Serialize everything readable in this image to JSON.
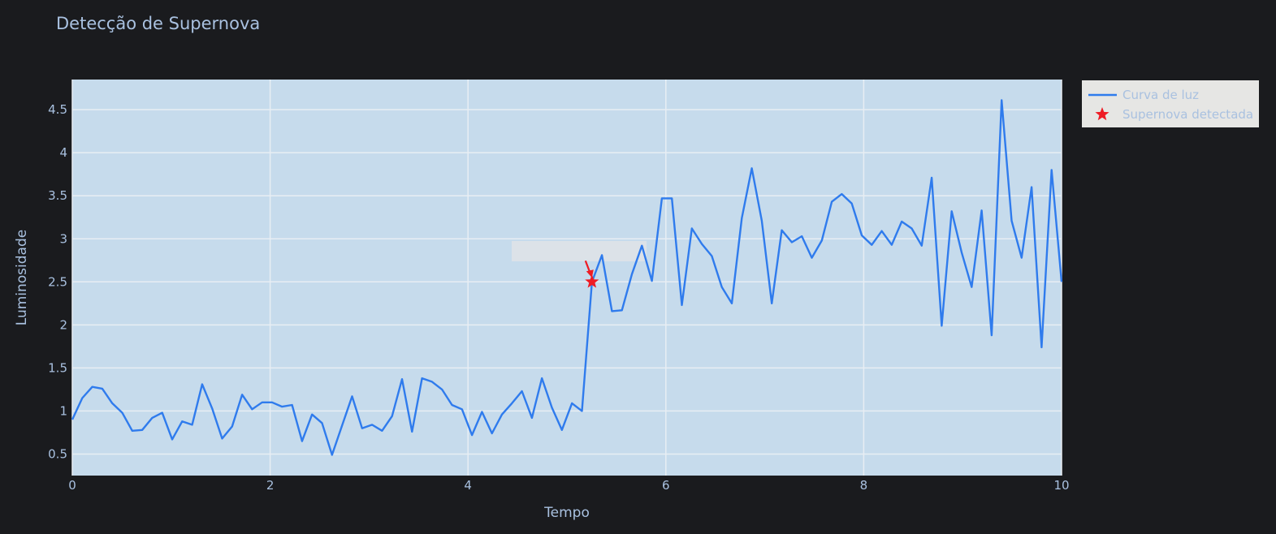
{
  "colors": {
    "background": "#1a1b1e",
    "plot_background": "#c6dbec",
    "grid": "#e8eef4",
    "text": "#a9c1e0",
    "line": "#2f7bed",
    "marker": "#ee1c25",
    "legend_background": "#e6e6e4",
    "annotation_box": "#dfe3e7"
  },
  "chart_data": {
    "type": "line",
    "title": "Detecção de Supernova",
    "xlabel": "Tempo",
    "ylabel": "Luminosidade",
    "xlim": [
      0,
      10
    ],
    "ylim": [
      0.25,
      4.85
    ],
    "xticks": [
      0,
      2,
      4,
      6,
      8,
      10
    ],
    "yticks": [
      0.5,
      1,
      1.5,
      2,
      2.5,
      3,
      3.5,
      4,
      4.5
    ],
    "grid": true,
    "legend_position": "top-right outside",
    "series": [
      {
        "name": "Curva de luz",
        "x": [
          0,
          0.101,
          0.202,
          0.303,
          0.404,
          0.505,
          0.606,
          0.707,
          0.808,
          0.909,
          1.01,
          1.111,
          1.212,
          1.313,
          1.414,
          1.515,
          1.616,
          1.717,
          1.818,
          1.919,
          2.02,
          2.121,
          2.222,
          2.323,
          2.424,
          2.525,
          2.626,
          2.727,
          2.828,
          2.929,
          3.03,
          3.131,
          3.232,
          3.333,
          3.434,
          3.535,
          3.636,
          3.737,
          3.838,
          3.939,
          4.04,
          4.141,
          4.242,
          4.343,
          4.444,
          4.545,
          4.646,
          4.747,
          4.848,
          4.949,
          5.051,
          5.152,
          5.253,
          5.354,
          5.455,
          5.556,
          5.657,
          5.758,
          5.859,
          5.96,
          6.061,
          6.162,
          6.263,
          6.364,
          6.465,
          6.566,
          6.667,
          6.768,
          6.869,
          6.97,
          7.071,
          7.172,
          7.273,
          7.374,
          7.475,
          7.576,
          7.677,
          7.778,
          7.879,
          7.98,
          8.081,
          8.182,
          8.283,
          8.384,
          8.485,
          8.586,
          8.687,
          8.788,
          8.889,
          8.99,
          9.091,
          9.192,
          9.293,
          9.394,
          9.495,
          9.596,
          9.697,
          9.798,
          9.899,
          10
        ],
        "y": [
          0.9,
          1.15,
          1.28,
          1.26,
          1.09,
          0.98,
          0.77,
          0.78,
          0.92,
          0.98,
          0.67,
          0.88,
          0.84,
          1.31,
          1.03,
          0.68,
          0.82,
          1.19,
          1.02,
          1.1,
          1.1,
          1.05,
          1.07,
          0.65,
          0.96,
          0.86,
          0.49,
          0.83,
          1.17,
          0.8,
          0.84,
          0.77,
          0.94,
          1.37,
          0.76,
          1.38,
          1.34,
          1.25,
          1.07,
          1.02,
          0.72,
          0.99,
          0.74,
          0.96,
          1.09,
          1.23,
          0.92,
          1.38,
          1.04,
          0.78,
          1.09,
          1.0,
          2.5,
          2.81,
          2.16,
          2.17,
          2.59,
          2.92,
          2.51,
          3.47,
          3.47,
          2.23,
          3.12,
          2.94,
          2.8,
          2.44,
          2.25,
          3.24,
          3.82,
          3.21,
          2.25,
          3.1,
          2.96,
          3.03,
          2.78,
          2.98,
          3.43,
          3.52,
          3.41,
          3.04,
          2.93,
          3.09,
          2.93,
          3.2,
          3.12,
          2.92,
          3.71,
          1.99,
          3.32,
          2.84,
          2.44,
          3.33,
          1.88,
          4.61,
          3.21,
          2.78,
          3.6,
          1.74,
          3.8,
          2.5
        ]
      },
      {
        "name": "Supernova detectada",
        "x": [
          5.253
        ],
        "y": [
          2.5
        ]
      }
    ]
  }
}
